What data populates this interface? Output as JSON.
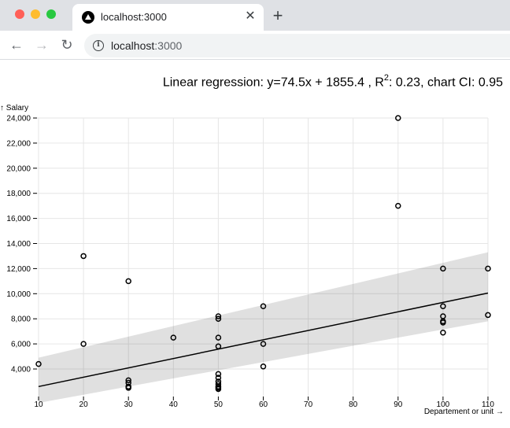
{
  "browser": {
    "tab_title": "localhost:3000",
    "tab_close_icon": "close-icon",
    "new_tab_icon": "plus-icon",
    "url_host": "localhost",
    "url_port": ":3000",
    "back_icon": "arrow-left-icon",
    "forward_icon": "arrow-right-icon",
    "reload_icon": "reload-icon",
    "info_icon": "info-icon"
  },
  "page": {
    "regression_prefix": "Linear regression: y=74.5x + 1855.4 , R",
    "regression_sup": "2",
    "regression_suffix": ": 0.23, chart CI: 0.95"
  },
  "chart_data": {
    "type": "scatter",
    "title": "Linear regression: y=74.5x + 1855.4 , R2: 0.23, chart CI: 0.95",
    "xlabel": "Departement or unit →",
    "ylabel": "↑ Salary",
    "xlim": [
      10,
      110
    ],
    "ylim": [
      2500,
      24000
    ],
    "x_ticks": [
      10,
      20,
      30,
      40,
      50,
      60,
      70,
      80,
      90,
      100,
      110
    ],
    "y_ticks": [
      4000,
      6000,
      8000,
      10000,
      12000,
      14000,
      16000,
      18000,
      20000,
      22000,
      24000
    ],
    "y_tick_labels": [
      "4,000",
      "6,000",
      "8,000",
      "10,000",
      "12,000",
      "14,000",
      "16,000",
      "18,000",
      "20,000",
      "22,000",
      "24,000"
    ],
    "grid": true,
    "regression": {
      "slope": 74.5,
      "intercept": 1855.4,
      "ci": 0.95
    },
    "ci_band": {
      "x": [
        10,
        110
      ],
      "lower": [
        1300,
        7800
      ],
      "upper": [
        4900,
        13300
      ]
    },
    "points": [
      {
        "x": 10,
        "y": 4400
      },
      {
        "x": 20,
        "y": 13000
      },
      {
        "x": 20,
        "y": 6000
      },
      {
        "x": 30,
        "y": 11000
      },
      {
        "x": 30,
        "y": 3100
      },
      {
        "x": 30,
        "y": 2900
      },
      {
        "x": 30,
        "y": 2600
      },
      {
        "x": 30,
        "y": 2500
      },
      {
        "x": 40,
        "y": 6500
      },
      {
        "x": 50,
        "y": 8200
      },
      {
        "x": 50,
        "y": 8000
      },
      {
        "x": 50,
        "y": 6500
      },
      {
        "x": 50,
        "y": 5800
      },
      {
        "x": 50,
        "y": 3600
      },
      {
        "x": 50,
        "y": 3300
      },
      {
        "x": 50,
        "y": 3000
      },
      {
        "x": 50,
        "y": 2800
      },
      {
        "x": 50,
        "y": 2600
      },
      {
        "x": 50,
        "y": 2500
      },
      {
        "x": 50,
        "y": 2400
      },
      {
        "x": 60,
        "y": 9000
      },
      {
        "x": 60,
        "y": 6000
      },
      {
        "x": 60,
        "y": 4200
      },
      {
        "x": 90,
        "y": 24000
      },
      {
        "x": 90,
        "y": 17000
      },
      {
        "x": 100,
        "y": 12000
      },
      {
        "x": 100,
        "y": 9000
      },
      {
        "x": 100,
        "y": 8200
      },
      {
        "x": 100,
        "y": 7800
      },
      {
        "x": 100,
        "y": 7700
      },
      {
        "x": 100,
        "y": 6900
      },
      {
        "x": 110,
        "y": 12000
      },
      {
        "x": 110,
        "y": 8300
      }
    ]
  }
}
